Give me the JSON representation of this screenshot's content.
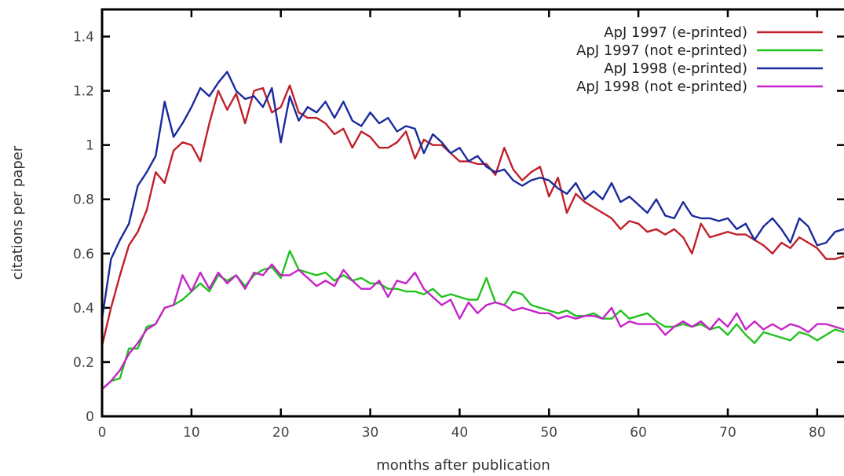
{
  "chart_data": {
    "type": "line",
    "title": "",
    "xlabel": "months after publication",
    "ylabel": "citations per paper",
    "xlim": [
      0,
      83
    ],
    "ylim": [
      0,
      1.5
    ],
    "x_ticks": [
      0,
      10,
      20,
      30,
      40,
      50,
      60,
      70,
      80
    ],
    "y_ticks": [
      0,
      0.2,
      0.4,
      0.6,
      0.8,
      1,
      1.2,
      1.4
    ],
    "y_tick_labels": [
      "0",
      "0.2",
      "0.4",
      "0.6",
      "0.8",
      "1",
      "1.2",
      "1.4"
    ],
    "grid": false,
    "legend_position": "top-right",
    "series": [
      {
        "name": "ApJ 1997 (e-printed)",
        "color": "#c0202a",
        "values": [
          0.26,
          0.4,
          0.52,
          0.63,
          0.68,
          0.76,
          0.9,
          0.86,
          0.98,
          1.01,
          1.0,
          0.94,
          1.08,
          1.2,
          1.13,
          1.19,
          1.08,
          1.2,
          1.21,
          1.12,
          1.14,
          1.22,
          1.12,
          1.1,
          1.1,
          1.08,
          1.04,
          1.06,
          0.99,
          1.05,
          1.03,
          0.99,
          0.99,
          1.01,
          1.05,
          0.95,
          1.02,
          1.0,
          1.0,
          0.97,
          0.94,
          0.94,
          0.93,
          0.93,
          0.89,
          0.99,
          0.91,
          0.87,
          0.9,
          0.92,
          0.81,
          0.88,
          0.75,
          0.82,
          0.79,
          0.77,
          0.75,
          0.73,
          0.69,
          0.72,
          0.71,
          0.68,
          0.69,
          0.67,
          0.69,
          0.66,
          0.6,
          0.71,
          0.66,
          0.67,
          0.68,
          0.67,
          0.67,
          0.65,
          0.63,
          0.6,
          0.64,
          0.62,
          0.66,
          0.64,
          0.62,
          0.58,
          0.58,
          0.59
        ]
      },
      {
        "name": "ApJ 1997 (not e-printed)",
        "color": "#22c11e",
        "values": [
          0.1,
          0.13,
          0.14,
          0.25,
          0.25,
          0.33,
          0.34,
          0.4,
          0.41,
          0.43,
          0.46,
          0.49,
          0.46,
          0.52,
          0.5,
          0.52,
          0.48,
          0.52,
          0.54,
          0.55,
          0.51,
          0.61,
          0.54,
          0.53,
          0.52,
          0.53,
          0.5,
          0.52,
          0.5,
          0.51,
          0.49,
          0.49,
          0.47,
          0.47,
          0.46,
          0.46,
          0.45,
          0.47,
          0.44,
          0.45,
          0.44,
          0.43,
          0.43,
          0.51,
          0.42,
          0.41,
          0.46,
          0.45,
          0.41,
          0.4,
          0.39,
          0.38,
          0.39,
          0.37,
          0.37,
          0.38,
          0.36,
          0.36,
          0.39,
          0.36,
          0.37,
          0.38,
          0.35,
          0.33,
          0.33,
          0.34,
          0.33,
          0.34,
          0.32,
          0.33,
          0.3,
          0.34,
          0.3,
          0.27,
          0.31,
          0.3,
          0.29,
          0.28,
          0.31,
          0.3,
          0.28,
          0.3,
          0.32,
          0.31
        ]
      },
      {
        "name": "ApJ 1998 (e-printed)",
        "color": "#1a2a9c",
        "values": [
          0.36,
          0.58,
          0.65,
          0.71,
          0.85,
          0.9,
          0.96,
          1.16,
          1.03,
          1.08,
          1.14,
          1.21,
          1.18,
          1.23,
          1.27,
          1.2,
          1.17,
          1.18,
          1.14,
          1.21,
          1.01,
          1.18,
          1.09,
          1.14,
          1.12,
          1.16,
          1.1,
          1.16,
          1.09,
          1.07,
          1.12,
          1.08,
          1.1,
          1.05,
          1.07,
          1.06,
          0.97,
          1.04,
          1.01,
          0.97,
          0.99,
          0.94,
          0.96,
          0.92,
          0.9,
          0.91,
          0.87,
          0.85,
          0.87,
          0.88,
          0.87,
          0.84,
          0.82,
          0.86,
          0.8,
          0.83,
          0.8,
          0.86,
          0.79,
          0.81,
          0.78,
          0.75,
          0.8,
          0.74,
          0.73,
          0.79,
          0.74,
          0.73,
          0.73,
          0.72,
          0.73,
          0.69,
          0.71,
          0.65,
          0.7,
          0.73,
          0.69,
          0.64,
          0.73,
          0.7,
          0.63,
          0.64,
          0.68,
          0.69
        ]
      },
      {
        "name": "ApJ 1998 (not e-printed)",
        "color": "#c623c9",
        "values": [
          0.1,
          0.13,
          0.17,
          0.23,
          0.27,
          0.32,
          0.34,
          0.4,
          0.41,
          0.52,
          0.46,
          0.53,
          0.47,
          0.53,
          0.49,
          0.52,
          0.47,
          0.53,
          0.52,
          0.56,
          0.52,
          0.52,
          0.54,
          0.51,
          0.48,
          0.5,
          0.48,
          0.54,
          0.5,
          0.47,
          0.47,
          0.5,
          0.44,
          0.5,
          0.49,
          0.53,
          0.47,
          0.44,
          0.41,
          0.43,
          0.36,
          0.42,
          0.38,
          0.41,
          0.42,
          0.41,
          0.39,
          0.4,
          0.39,
          0.38,
          0.38,
          0.36,
          0.37,
          0.36,
          0.37,
          0.37,
          0.36,
          0.4,
          0.33,
          0.35,
          0.34,
          0.34,
          0.34,
          0.3,
          0.33,
          0.35,
          0.33,
          0.35,
          0.32,
          0.36,
          0.33,
          0.38,
          0.32,
          0.35,
          0.32,
          0.34,
          0.32,
          0.34,
          0.33,
          0.31,
          0.34,
          0.34,
          0.33,
          0.32
        ]
      }
    ]
  }
}
